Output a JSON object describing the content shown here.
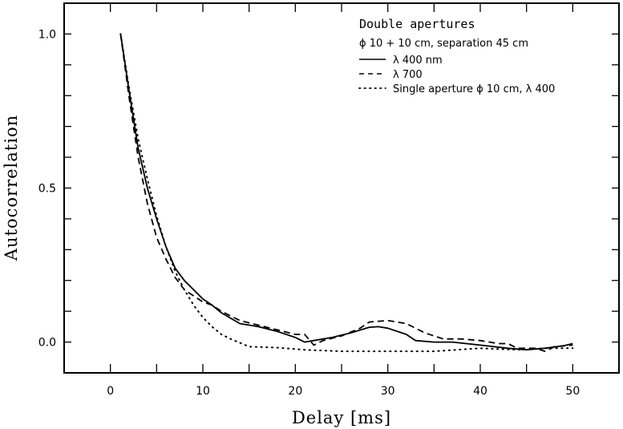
{
  "chart_data": {
    "type": "line",
    "title": "",
    "xlabel": "Delay [ms]",
    "ylabel": "Autocorrelation",
    "xlim": [
      -5,
      55
    ],
    "ylim": [
      -0.1,
      1.1
    ],
    "xticks": [
      0,
      10,
      20,
      30,
      40,
      50
    ],
    "xtick_labels": [
      "0",
      "10",
      "20",
      "30",
      "40",
      "50"
    ],
    "xminor_ticks": [
      5,
      15,
      25,
      35,
      45
    ],
    "yticks": [
      0.0,
      0.5,
      1.0
    ],
    "ytick_labels": [
      "0.0",
      "0.5",
      "1.0"
    ],
    "yminor_ticks": [
      0.1,
      0.2,
      0.3,
      0.4,
      0.6,
      0.7,
      0.8,
      0.9
    ],
    "grid": false,
    "legend_position": "upper right",
    "legend": {
      "title": "Double apertures",
      "subtitle": "ϕ 10 + 10 cm, separation 45 cm",
      "entries": [
        "λ 400 nm",
        "λ 700",
        "Single aperture ϕ 10 cm, λ 400"
      ]
    },
    "series": [
      {
        "name": "λ 400 nm",
        "style": "solid",
        "x": [
          1.1,
          2,
          3,
          4,
          5,
          6,
          7,
          8,
          10,
          11,
          12,
          14,
          16,
          18,
          20,
          21,
          22,
          24,
          26,
          28,
          29,
          30,
          32,
          33,
          35,
          37,
          40,
          43,
          45,
          47,
          49,
          50
        ],
        "y": [
          1.0,
          0.82,
          0.63,
          0.5,
          0.4,
          0.31,
          0.24,
          0.2,
          0.14,
          0.12,
          0.095,
          0.06,
          0.05,
          0.035,
          0.015,
          0.0,
          0.005,
          0.015,
          0.03,
          0.048,
          0.05,
          0.045,
          0.025,
          0.005,
          0.0,
          0.0,
          -0.01,
          -0.02,
          -0.025,
          -0.02,
          -0.012,
          -0.005
        ]
      },
      {
        "name": "λ 700",
        "style": "dashed",
        "x": [
          1.1,
          2,
          3,
          4,
          5,
          6,
          7,
          8,
          10,
          11,
          12,
          14,
          16,
          18,
          20,
          21,
          22,
          23,
          25,
          27,
          28,
          30,
          32,
          34,
          36,
          38,
          40,
          42,
          43,
          44,
          46,
          47,
          48,
          50
        ],
        "y": [
          1.0,
          0.8,
          0.6,
          0.45,
          0.34,
          0.27,
          0.21,
          0.17,
          0.13,
          0.12,
          0.1,
          0.07,
          0.055,
          0.04,
          0.025,
          0.025,
          -0.01,
          0.005,
          0.02,
          0.045,
          0.065,
          0.07,
          0.06,
          0.03,
          0.01,
          0.01,
          0.005,
          -0.005,
          -0.005,
          -0.02,
          -0.02,
          -0.03,
          -0.015,
          -0.01
        ]
      },
      {
        "name": "Single aperture ϕ 10 cm, λ 400",
        "style": "dotted",
        "x": [
          1.1,
          2,
          3,
          4,
          5,
          6,
          7,
          8,
          9,
          10,
          11,
          12,
          13,
          15,
          18,
          21,
          25,
          30,
          35,
          40,
          44,
          47,
          50
        ],
        "y": [
          1.0,
          0.83,
          0.66,
          0.53,
          0.41,
          0.31,
          0.23,
          0.17,
          0.12,
          0.08,
          0.05,
          0.025,
          0.01,
          -0.015,
          -0.018,
          -0.025,
          -0.03,
          -0.03,
          -0.03,
          -0.02,
          -0.025,
          -0.02,
          -0.02
        ]
      }
    ]
  },
  "colors": {
    "line": "#000000",
    "background": "#ffffff"
  }
}
